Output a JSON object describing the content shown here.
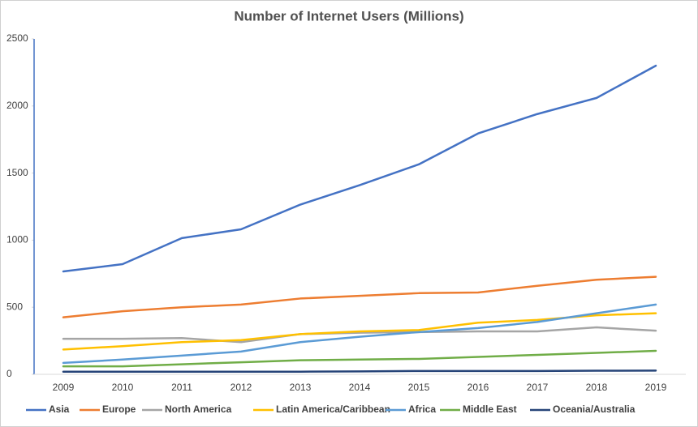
{
  "chart_data": {
    "type": "line",
    "title": "Number of Internet Users (Millions)",
    "categories": [
      "2009",
      "2010",
      "2011",
      "2012",
      "2013",
      "2014",
      "2015",
      "2016",
      "2017",
      "2018",
      "2019"
    ],
    "series": [
      {
        "name": "Asia",
        "color": "#4472c4",
        "values": [
          767,
          821,
          1015,
          1081,
          1265,
          1410,
          1565,
          1795,
          1940,
          2060,
          2300
        ]
      },
      {
        "name": "Europe",
        "color": "#ed7d31",
        "values": [
          425,
          470,
          500,
          520,
          565,
          585,
          605,
          610,
          660,
          705,
          727
        ]
      },
      {
        "name": "North America",
        "color": "#a5a5a5",
        "values": [
          265,
          265,
          270,
          240,
          300,
          310,
          315,
          320,
          320,
          350,
          325
        ]
      },
      {
        "name": "Latin America/Caribbean",
        "color": "#ffc000",
        "values": [
          185,
          210,
          240,
          255,
          300,
          320,
          330,
          385,
          405,
          440,
          455
        ]
      },
      {
        "name": "Africa",
        "color": "#5b9bd5",
        "values": [
          85,
          110,
          140,
          170,
          240,
          280,
          315,
          345,
          390,
          455,
          520
        ]
      },
      {
        "name": "Middle East",
        "color": "#70ad47",
        "values": [
          60,
          60,
          75,
          90,
          105,
          110,
          115,
          130,
          145,
          160,
          175
        ]
      },
      {
        "name": "Oceania/Australia",
        "color": "#264478",
        "values": [
          20,
          20,
          20,
          20,
          20,
          22,
          25,
          25,
          25,
          27,
          28
        ]
      }
    ],
    "ylim": [
      0,
      2500
    ],
    "yticks": [
      0,
      500,
      1000,
      1500,
      2000,
      2500
    ],
    "grid": false,
    "legend": "bottom"
  }
}
